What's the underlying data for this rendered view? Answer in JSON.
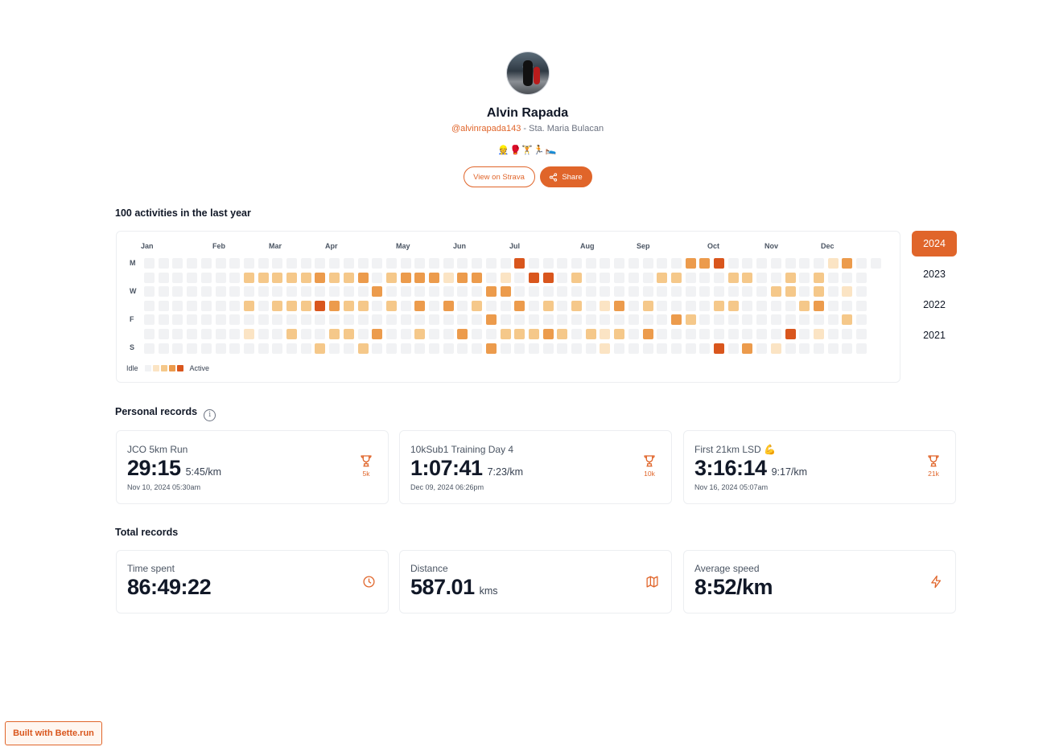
{
  "profile": {
    "name": "Alvin Rapada",
    "handle": "@alvinrapada143",
    "location": " - Sta. Maria Bulacan",
    "emojis": "👷🥊🏋🏃🛌",
    "view_strava_label": "View on Strava",
    "share_label": "Share"
  },
  "heatmap": {
    "title": "100 activities in the last year",
    "months": [
      "Jan",
      "Feb",
      "Mar",
      "Apr",
      "May",
      "Jun",
      "Jul",
      "Aug",
      "Sep",
      "Oct",
      "Nov",
      "Dec"
    ],
    "day_labels": [
      "M",
      "W",
      "F",
      "S"
    ],
    "legend_idle": "Idle",
    "legend_active": "Active",
    "level_colors": [
      "#f1f2f4",
      "#fbe4c4",
      "#f5c88a",
      "#ec9b4c",
      "#d9561d"
    ],
    "active": [
      [
        0,
        26,
        4
      ],
      [
        0,
        38,
        3
      ],
      [
        0,
        39,
        3
      ],
      [
        0,
        40,
        4
      ],
      [
        0,
        48,
        1
      ],
      [
        0,
        49,
        3
      ],
      [
        1,
        7,
        2
      ],
      [
        1,
        8,
        2
      ],
      [
        1,
        9,
        2
      ],
      [
        1,
        10,
        2
      ],
      [
        1,
        11,
        2
      ],
      [
        1,
        12,
        3
      ],
      [
        1,
        13,
        2
      ],
      [
        1,
        14,
        2
      ],
      [
        1,
        15,
        3
      ],
      [
        1,
        17,
        2
      ],
      [
        1,
        18,
        3
      ],
      [
        1,
        19,
        3
      ],
      [
        1,
        20,
        3
      ],
      [
        1,
        21,
        1
      ],
      [
        1,
        22,
        3
      ],
      [
        1,
        23,
        3
      ],
      [
        1,
        25,
        1
      ],
      [
        1,
        27,
        4
      ],
      [
        1,
        28,
        4
      ],
      [
        1,
        30,
        2
      ],
      [
        1,
        36,
        2
      ],
      [
        1,
        37,
        2
      ],
      [
        1,
        41,
        2
      ],
      [
        1,
        42,
        2
      ],
      [
        1,
        45,
        2
      ],
      [
        1,
        47,
        2
      ],
      [
        2,
        16,
        3
      ],
      [
        2,
        24,
        3
      ],
      [
        2,
        25,
        3
      ],
      [
        2,
        44,
        2
      ],
      [
        2,
        45,
        2
      ],
      [
        2,
        47,
        2
      ],
      [
        2,
        49,
        1
      ],
      [
        3,
        7,
        2
      ],
      [
        3,
        9,
        2
      ],
      [
        3,
        10,
        2
      ],
      [
        3,
        11,
        2
      ],
      [
        3,
        12,
        4
      ],
      [
        3,
        13,
        3
      ],
      [
        3,
        14,
        2
      ],
      [
        3,
        15,
        2
      ],
      [
        3,
        17,
        2
      ],
      [
        3,
        19,
        3
      ],
      [
        3,
        21,
        3
      ],
      [
        3,
        23,
        2
      ],
      [
        3,
        26,
        3
      ],
      [
        3,
        28,
        2
      ],
      [
        3,
        30,
        2
      ],
      [
        3,
        32,
        1
      ],
      [
        3,
        33,
        3
      ],
      [
        3,
        35,
        2
      ],
      [
        3,
        40,
        2
      ],
      [
        3,
        41,
        2
      ],
      [
        3,
        46,
        2
      ],
      [
        3,
        47,
        3
      ],
      [
        4,
        24,
        3
      ],
      [
        4,
        37,
        3
      ],
      [
        4,
        38,
        2
      ],
      [
        4,
        49,
        2
      ],
      [
        5,
        7,
        1
      ],
      [
        5,
        10,
        2
      ],
      [
        5,
        13,
        2
      ],
      [
        5,
        14,
        2
      ],
      [
        5,
        16,
        3
      ],
      [
        5,
        19,
        2
      ],
      [
        5,
        22,
        3
      ],
      [
        5,
        25,
        2
      ],
      [
        5,
        26,
        2
      ],
      [
        5,
        27,
        2
      ],
      [
        5,
        28,
        3
      ],
      [
        5,
        29,
        2
      ],
      [
        5,
        31,
        2
      ],
      [
        5,
        32,
        1
      ],
      [
        5,
        33,
        2
      ],
      [
        5,
        35,
        3
      ],
      [
        5,
        45,
        4
      ],
      [
        5,
        47,
        1
      ],
      [
        6,
        12,
        2
      ],
      [
        6,
        15,
        2
      ],
      [
        6,
        24,
        3
      ],
      [
        6,
        32,
        1
      ],
      [
        6,
        40,
        4
      ],
      [
        6,
        42,
        3
      ],
      [
        6,
        44,
        1
      ]
    ]
  },
  "years": [
    "2024",
    "2023",
    "2022",
    "2021"
  ],
  "personal_records": {
    "title": "Personal records",
    "info_icon": "i",
    "items": [
      {
        "name": "JCO 5km Run",
        "time": "29:15",
        "pace": "5:45/km",
        "date": "Nov 10, 2024 05:30am",
        "badge": "5k"
      },
      {
        "name": "10kSub1 Training Day 4",
        "time": "1:07:41",
        "pace": "7:23/km",
        "date": "Dec 09, 2024 06:26pm",
        "badge": "10k"
      },
      {
        "name": "First 21km LSD 💪",
        "time": "3:16:14",
        "pace": "9:17/km",
        "date": "Nov 16, 2024 05:07am",
        "badge": "21k"
      }
    ]
  },
  "total_records": {
    "title": "Total records",
    "items": [
      {
        "label": "Time spent",
        "value": "86:49:22",
        "unit": "",
        "icon": "clock-icon"
      },
      {
        "label": "Distance",
        "value": "587.01",
        "unit": "kms",
        "icon": "map-icon"
      },
      {
        "label": "Average speed",
        "value": "8:52/km",
        "unit": "",
        "icon": "lightning-icon"
      }
    ]
  },
  "footer": {
    "built_with": "Built with Bette.run"
  }
}
